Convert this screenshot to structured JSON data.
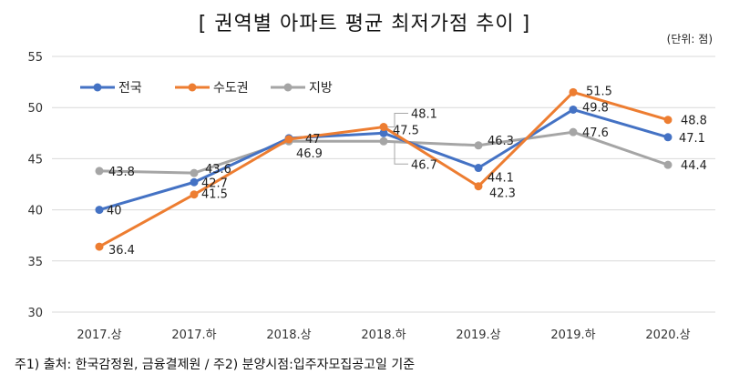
{
  "title": "[ 권역별 아파트 평균 최저가점 추이 ]",
  "unit": "(단위: 점)",
  "footnote": "주1) 출처: 한국감정원, 금융결제원 / 주2) 분양시점:입주자모집공고일 기준",
  "chart_data": {
    "type": "line",
    "categories": [
      "2017.상",
      "2017.하",
      "2018.상",
      "2018.하",
      "2019.상",
      "2019.하",
      "2020.상"
    ],
    "ylim": [
      30,
      55
    ],
    "yticks": [
      30,
      35,
      40,
      45,
      50,
      55
    ],
    "grid": true,
    "legend": "top-left",
    "series": [
      {
        "name": "전국",
        "color": "#4472C4",
        "values": [
          40,
          42.7,
          47,
          47.5,
          44.1,
          49.8,
          47.1
        ],
        "labels": [
          "40",
          "42.7",
          "47",
          "47.5",
          "44.1",
          "49.8",
          "47.1"
        ]
      },
      {
        "name": "수도권",
        "color": "#ED7D31",
        "values": [
          36.4,
          41.5,
          46.9,
          48.1,
          42.3,
          51.5,
          48.8
        ],
        "labels": [
          "36.4",
          "41.5",
          "46.9",
          "48.1",
          "42.3",
          "51.5",
          "48.8"
        ]
      },
      {
        "name": "지방",
        "color": "#A5A5A5",
        "values": [
          43.8,
          43.6,
          46.7,
          46.7,
          46.3,
          47.6,
          44.4
        ],
        "labels": [
          "43.8",
          "43.6",
          "",
          "46.7",
          "46.3",
          "47.6",
          "44.4"
        ]
      }
    ]
  }
}
